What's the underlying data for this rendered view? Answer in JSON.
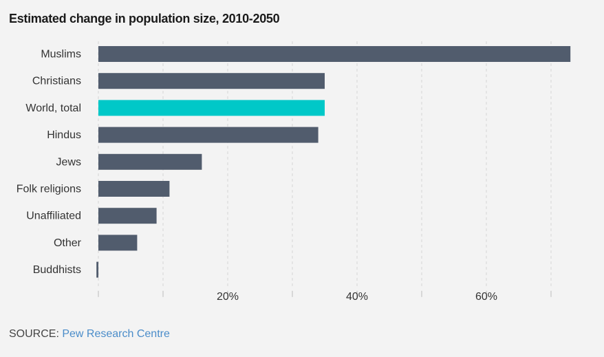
{
  "title": "Estimated change in population size, 2010-2050",
  "source": {
    "label": "SOURCE:",
    "link_text": "Pew Research Centre"
  },
  "chart_data": {
    "type": "bar",
    "orientation": "horizontal",
    "title": "Estimated change in population size, 2010-2050",
    "categories": [
      "Muslims",
      "Christians",
      "World, total",
      "Hindus",
      "Jews",
      "Folk religions",
      "Unaffiliated",
      "Other",
      "Buddhists"
    ],
    "values": [
      73,
      35,
      35,
      34,
      16,
      11,
      9,
      6,
      -0.3
    ],
    "highlight": "World, total",
    "xlim": [
      0,
      73
    ],
    "xticks": [
      20,
      40,
      60
    ],
    "xtick_labels": [
      "20%",
      "40%",
      "60%"
    ],
    "gridlines_every": 10,
    "grid": true,
    "colors": {
      "bar": "#515c6d",
      "highlight": "#00c8c8"
    }
  }
}
